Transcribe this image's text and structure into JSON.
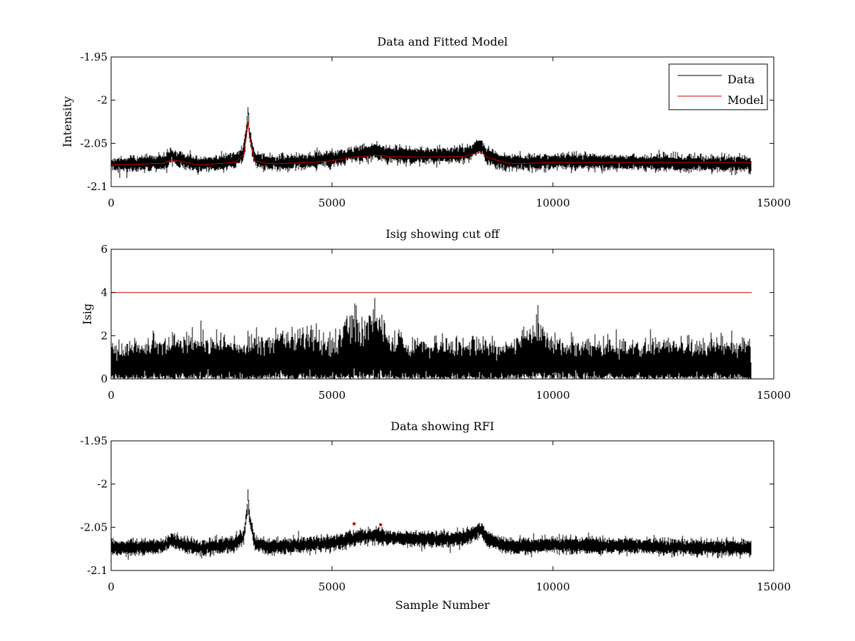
{
  "chart_data": [
    {
      "type": "line",
      "title": "Data and Fitted Model",
      "xlabel": "",
      "ylabel": "Intensity",
      "xlim": [
        0,
        15000
      ],
      "ylim": [
        -2.1,
        -1.95
      ],
      "xticks": [
        0,
        5000,
        10000,
        15000
      ],
      "xtick_labels": [
        "0",
        "5000",
        "10000",
        "15000"
      ],
      "yticks": [
        -2.1,
        -2.05,
        -2,
        -1.95
      ],
      "ytick_labels": [
        "-2.1",
        "-2.05",
        "-2",
        "-1.95"
      ],
      "grid": false,
      "legend": {
        "position": "top-right",
        "entries": [
          "Data",
          "Model"
        ]
      },
      "n_samples": 14500,
      "series": [
        {
          "name": "Data",
          "color": "#000000",
          "noise_sd": 0.004,
          "x": [
            0,
            1200,
            1350,
            1500,
            2000,
            2800,
            3000,
            3080,
            3100,
            3130,
            3250,
            3500,
            4000,
            4500,
            5000,
            5500,
            6000,
            6300,
            7000,
            8000,
            8380,
            8420,
            8500,
            8700,
            9000,
            9500,
            10000,
            11000,
            12000,
            13000,
            14500
          ],
          "values": [
            -2.074,
            -2.072,
            -2.064,
            -2.068,
            -2.074,
            -2.07,
            -2.06,
            -2.03,
            -2.012,
            -2.04,
            -2.068,
            -2.072,
            -2.072,
            -2.07,
            -2.068,
            -2.063,
            -2.059,
            -2.062,
            -2.064,
            -2.063,
            -2.052,
            -2.056,
            -2.064,
            -2.068,
            -2.072,
            -2.072,
            -2.07,
            -2.071,
            -2.072,
            -2.073,
            -2.074
          ]
        },
        {
          "name": "Model",
          "color": "#d00000",
          "x": [
            0,
            1200,
            1350,
            1500,
            2000,
            2800,
            3000,
            3080,
            3100,
            3130,
            3250,
            3500,
            4000,
            4500,
            5000,
            5500,
            6000,
            6300,
            7000,
            8000,
            8380,
            8420,
            8500,
            8700,
            9000,
            9500,
            10000,
            11000,
            12000,
            13000,
            14500
          ],
          "values": [
            -2.075,
            -2.073,
            -2.069,
            -2.07,
            -2.075,
            -2.072,
            -2.063,
            -2.035,
            -2.025,
            -2.042,
            -2.07,
            -2.073,
            -2.073,
            -2.072,
            -2.07,
            -2.066,
            -2.064,
            -2.065,
            -2.066,
            -2.065,
            -2.06,
            -2.062,
            -2.066,
            -2.069,
            -2.073,
            -2.073,
            -2.072,
            -2.072,
            -2.072,
            -2.072,
            -2.072
          ]
        }
      ]
    },
    {
      "type": "line",
      "title": "Isig showing cut off",
      "xlabel": "",
      "ylabel": "Isig",
      "xlim": [
        0,
        15000
      ],
      "ylim": [
        0,
        6
      ],
      "xticks": [
        0,
        5000,
        10000,
        15000
      ],
      "xtick_labels": [
        "0",
        "5000",
        "10000",
        "15000"
      ],
      "yticks": [
        0,
        2,
        4,
        6
      ],
      "ytick_labels": [
        "0",
        "2",
        "4",
        "6"
      ],
      "grid": false,
      "n_samples": 14500,
      "series": [
        {
          "name": "Isig",
          "color": "#000000",
          "baseline": 0.7,
          "noise_sd": 0.55,
          "x": [
            0,
            1350,
            3000,
            3500,
            4000,
            4500,
            5000,
            5300,
            5500,
            5700,
            6000,
            6300,
            7000,
            8000,
            9000,
            9700,
            9800,
            10000,
            11000,
            12000,
            13000,
            14000,
            14500
          ],
          "values": [
            0.8,
            1.0,
            0.9,
            1.0,
            1.1,
            1.2,
            0.9,
            1.3,
            1.6,
            1.2,
            1.8,
            1.0,
            0.9,
            0.9,
            0.9,
            1.4,
            1.2,
            0.9,
            0.9,
            0.9,
            0.9,
            0.9,
            0.9
          ]
        },
        {
          "name": "Cut off",
          "color": "#d00000",
          "x": [
            0,
            14500
          ],
          "values": [
            4,
            4
          ]
        }
      ]
    },
    {
      "type": "line",
      "title": "Data showing RFI",
      "xlabel": "Sample Number",
      "ylabel": "",
      "xlim": [
        0,
        15000
      ],
      "ylim": [
        -2.1,
        -1.95
      ],
      "xticks": [
        0,
        5000,
        10000,
        15000
      ],
      "xtick_labels": [
        "0",
        "5000",
        "10000",
        "15000"
      ],
      "yticks": [
        -2.1,
        -2.05,
        -2,
        -1.95
      ],
      "ytick_labels": [
        "-2.1",
        "-2.05",
        "-2",
        "-1.95"
      ],
      "grid": false,
      "n_samples": 14500,
      "series": [
        {
          "name": "Data",
          "color": "#000000",
          "noise_sd": 0.004,
          "x": [
            0,
            1200,
            1350,
            1500,
            2000,
            2800,
            3000,
            3080,
            3100,
            3130,
            3250,
            3500,
            4000,
            4500,
            5000,
            5500,
            6000,
            6300,
            7000,
            8000,
            8380,
            8420,
            8500,
            8700,
            9000,
            9500,
            10000,
            11000,
            12000,
            13000,
            14500
          ],
          "values": [
            -2.074,
            -2.072,
            -2.064,
            -2.068,
            -2.074,
            -2.07,
            -2.06,
            -2.03,
            -2.012,
            -2.04,
            -2.068,
            -2.072,
            -2.072,
            -2.07,
            -2.068,
            -2.063,
            -2.059,
            -2.062,
            -2.064,
            -2.063,
            -2.052,
            -2.056,
            -2.064,
            -2.068,
            -2.072,
            -2.072,
            -2.07,
            -2.071,
            -2.072,
            -2.073,
            -2.074
          ]
        },
        {
          "name": "RFI",
          "color": "#d00000",
          "marker": "dot",
          "x": [
            5500,
            6100
          ],
          "values": [
            -2.046,
            -2.047
          ]
        }
      ]
    }
  ]
}
